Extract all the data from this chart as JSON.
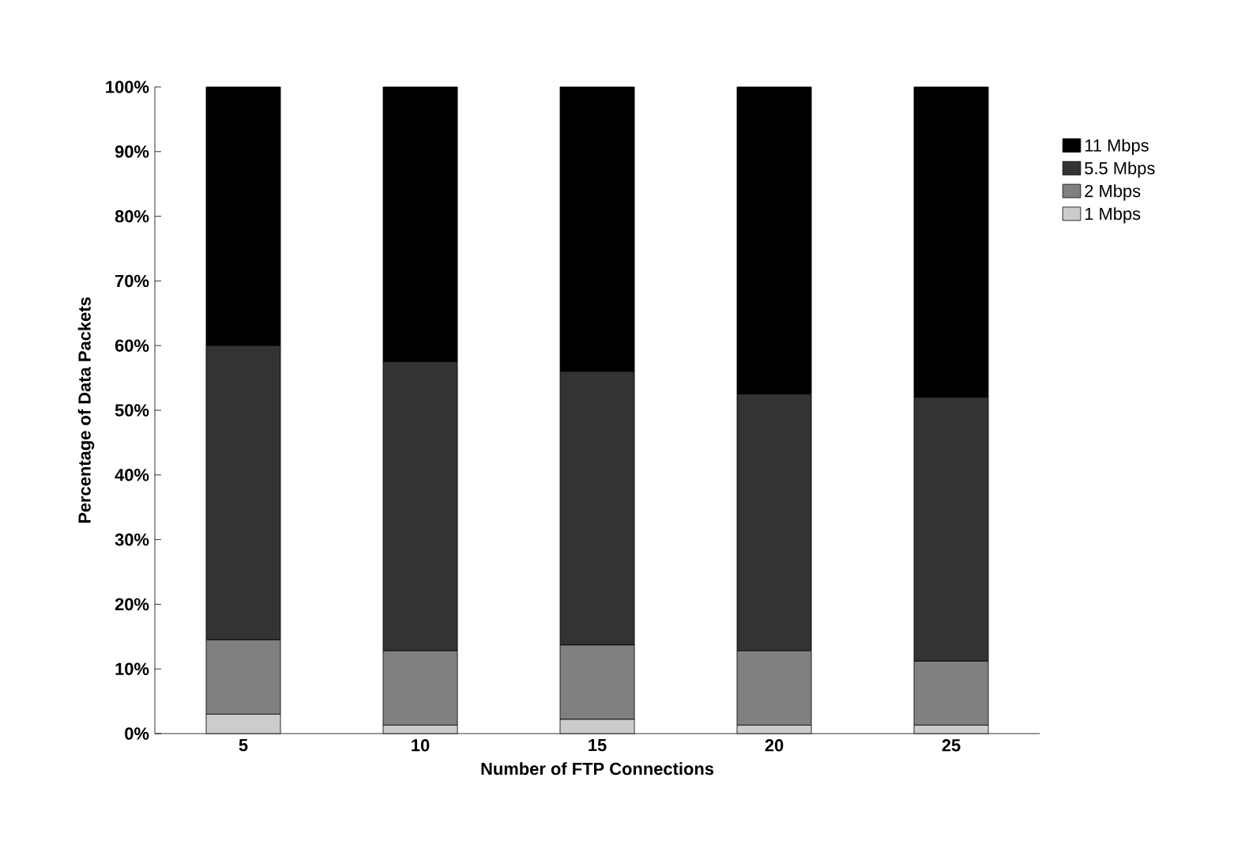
{
  "chart_data": {
    "type": "bar",
    "stacked": true,
    "xlabel": "Number of FTP Connections",
    "ylabel": "Percentage of Data Packets",
    "categories": [
      "5",
      "10",
      "15",
      "20",
      "25"
    ],
    "series": [
      {
        "name": "1 Mbps",
        "color": "#cccccc",
        "values": [
          3,
          1.3,
          2.2,
          1.3,
          1.3
        ]
      },
      {
        "name": "2 Mbps",
        "color": "#808080",
        "values": [
          11.5,
          11.5,
          11.5,
          11.5,
          9.9
        ]
      },
      {
        "name": "5.5 Mbps",
        "color": "#333333",
        "values": [
          45.5,
          44.7,
          42.3,
          39.7,
          40.8
        ]
      },
      {
        "name": "11 Mbps",
        "color": "#000000",
        "values": [
          40,
          42.5,
          44,
          47.5,
          48
        ]
      }
    ],
    "ylim": [
      0,
      100
    ],
    "yticks": [
      {
        "value": 0,
        "label": "0%"
      },
      {
        "value": 10,
        "label": "10%"
      },
      {
        "value": 20,
        "label": "20%"
      },
      {
        "value": 30,
        "label": "30%"
      },
      {
        "value": 40,
        "label": "40%"
      },
      {
        "value": 50,
        "label": "50%"
      },
      {
        "value": 60,
        "label": "60%"
      },
      {
        "value": 70,
        "label": "70%"
      },
      {
        "value": 80,
        "label": "80%"
      },
      {
        "value": 90,
        "label": "90%"
      },
      {
        "value": 100,
        "label": "100%"
      }
    ],
    "legend": "right",
    "grid": false
  }
}
